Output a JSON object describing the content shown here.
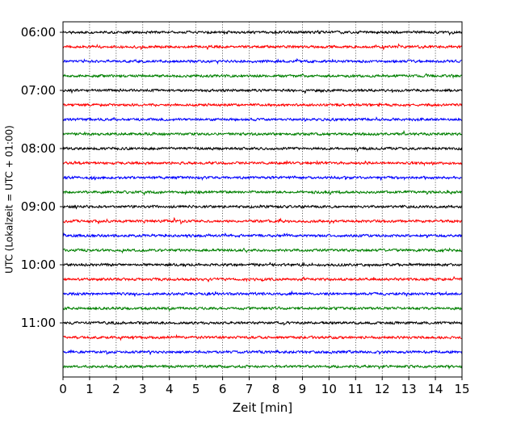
{
  "chart_data": {
    "type": "line",
    "chart_kind": "helicorder (seismogram drum plot)",
    "title": "",
    "xlabel": "Zeit  [min]",
    "ylabel": "UTC (Lokalzeit = UTC + 01:00)",
    "xlim": [
      0,
      15
    ],
    "x_ticks": [
      0,
      1,
      2,
      3,
      4,
      5,
      6,
      7,
      8,
      9,
      10,
      11,
      12,
      13,
      14,
      15
    ],
    "x_tick_labels": [
      "0",
      "1",
      "2",
      "3",
      "4",
      "5",
      "6",
      "7",
      "8",
      "9",
      "10",
      "11",
      "12",
      "13",
      "14",
      "15"
    ],
    "y_tick_labels": [
      "06:00",
      "07:00",
      "08:00",
      "09:00",
      "10:00",
      "11:00"
    ],
    "grid": "vertical dotted lines at each minute",
    "trace_colors": [
      "#000000",
      "#ff0000",
      "#0000ff",
      "#008000"
    ],
    "trace_minutes_each": 15,
    "traces": [
      {
        "start": "06:00",
        "color": "#000000"
      },
      {
        "start": "06:15",
        "color": "#ff0000"
      },
      {
        "start": "06:30",
        "color": "#0000ff"
      },
      {
        "start": "06:45",
        "color": "#008000"
      },
      {
        "start": "07:00",
        "color": "#000000"
      },
      {
        "start": "07:15",
        "color": "#ff0000"
      },
      {
        "start": "07:30",
        "color": "#0000ff"
      },
      {
        "start": "07:45",
        "color": "#008000"
      },
      {
        "start": "08:00",
        "color": "#000000"
      },
      {
        "start": "08:15",
        "color": "#ff0000"
      },
      {
        "start": "08:30",
        "color": "#0000ff"
      },
      {
        "start": "08:45",
        "color": "#008000"
      },
      {
        "start": "09:00",
        "color": "#000000"
      },
      {
        "start": "09:15",
        "color": "#ff0000"
      },
      {
        "start": "09:30",
        "color": "#0000ff"
      },
      {
        "start": "09:45",
        "color": "#008000"
      },
      {
        "start": "10:00",
        "color": "#000000"
      },
      {
        "start": "10:15",
        "color": "#ff0000"
      },
      {
        "start": "10:30",
        "color": "#0000ff"
      },
      {
        "start": "10:45",
        "color": "#008000"
      },
      {
        "start": "11:00",
        "color": "#000000"
      },
      {
        "start": "11:15",
        "color": "#ff0000"
      },
      {
        "start": "11:30",
        "color": "#0000ff"
      },
      {
        "start": "11:45",
        "color": "#008000"
      }
    ]
  }
}
